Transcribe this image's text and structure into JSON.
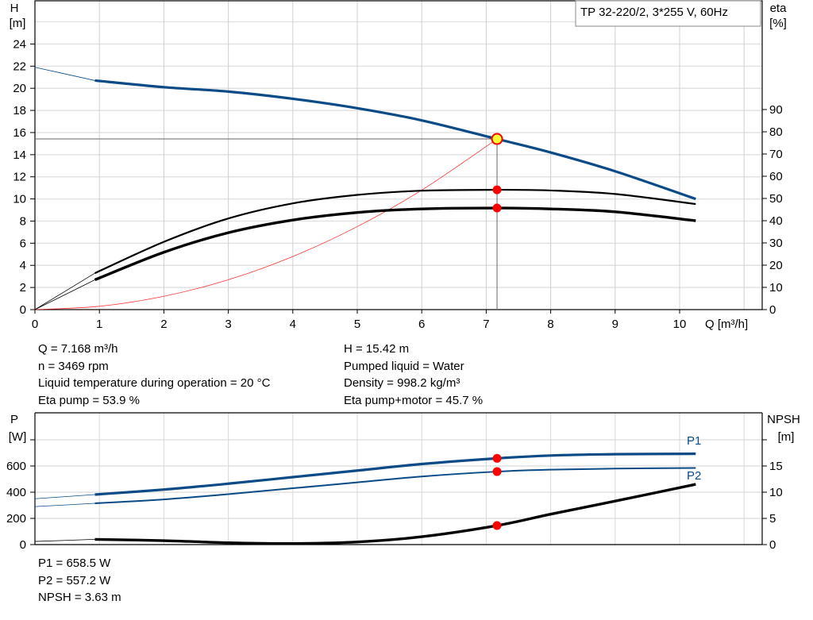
{
  "chart_data": [
    {
      "type": "line",
      "title": "TP 32-220/2, 3*255 V, 60Hz",
      "xlabel": "Q [m³/h]",
      "ylabel": [
        "H",
        "[m]"
      ],
      "y2label": [
        "eta",
        "[%]"
      ],
      "xlim": [
        0,
        11
      ],
      "ylim": [
        0,
        26
      ],
      "y2lim": [
        0,
        90
      ],
      "xticks": [
        0,
        1,
        2,
        3,
        4,
        5,
        6,
        7,
        8,
        9,
        10
      ],
      "yticks": [
        0,
        2,
        4,
        6,
        8,
        10,
        12,
        14,
        16,
        18,
        20,
        22,
        24
      ],
      "y2ticks": [
        0,
        10,
        20,
        30,
        40,
        50,
        60,
        70,
        80,
        90
      ],
      "grid": true,
      "x": [
        0,
        0.93,
        2,
        3,
        4,
        5,
        6,
        7.168,
        8,
        9,
        10.25
      ],
      "series": [
        {
          "id": "H",
          "axis": "left",
          "color": "#0a4a86",
          "values": [
            21.9,
            20.7,
            20.1,
            19.7,
            19.05,
            18.2,
            17.1,
            15.42,
            14.2,
            12.5,
            10.0
          ]
        },
        {
          "id": "eta-pump",
          "axis": "right",
          "color": "#000000",
          "values": [
            0,
            16.4,
            30.5,
            41,
            47.8,
            51.6,
            53.5,
            53.9,
            53.6,
            52,
            47.5
          ]
        },
        {
          "id": "eta-pump-motor",
          "axis": "right",
          "color": "#000000",
          "values": [
            0,
            13.4,
            25.8,
            34.6,
            40.3,
            43.7,
            45.3,
            45.7,
            45.3,
            44,
            40
          ]
        },
        {
          "id": "system-curve",
          "axis": "left",
          "color": "#ff3333",
          "x": [
            0,
            1,
            2,
            3,
            4,
            5,
            6,
            7.168
          ],
          "values": [
            0,
            0.3,
            1.2,
            2.7,
            4.8,
            7.5,
            10.8,
            15.42
          ]
        }
      ],
      "duty_point": {
        "Q": 7.168,
        "H": 15.42,
        "eta_pump": 53.9,
        "eta_total": 45.7
      }
    },
    {
      "type": "line",
      "ylabel": [
        "P",
        "[W]"
      ],
      "y2label": [
        "NPSH",
        "[m]"
      ],
      "xlim": [
        0,
        11
      ],
      "ylim": [
        0,
        800
      ],
      "y2lim": [
        0,
        20
      ],
      "yticks": [
        0,
        200,
        400,
        600
      ],
      "y2ticks": [
        0,
        5,
        10,
        15
      ],
      "grid": true,
      "x": [
        0,
        0.93,
        2,
        3,
        4,
        5,
        6,
        7.168,
        8,
        9,
        10.25
      ],
      "series": [
        {
          "name": "P1",
          "axis": "left",
          "color": "#0a4a86",
          "values": [
            350,
            382,
            420,
            465,
            515,
            565,
            615,
            658.5,
            680,
            690,
            693
          ]
        },
        {
          "name": "P2",
          "axis": "left",
          "color": "#0a4a86",
          "values": [
            290,
            315,
            345,
            385,
            430,
            475,
            520,
            557.2,
            572,
            580,
            585
          ]
        },
        {
          "id": "NPSH",
          "axis": "right",
          "color": "#000000",
          "values": [
            0.6,
            1.0,
            0.75,
            0.35,
            0.2,
            0.5,
            1.5,
            3.63,
            5.8,
            8.3,
            11.5
          ]
        }
      ]
    }
  ],
  "info_top_left": [
    "Q = 7.168 m³/h",
    "n = 3469 rpm",
    "Liquid temperature during operation = 20 °C",
    "Eta pump = 53.9 %"
  ],
  "info_top_right": [
    "H = 15.42 m",
    "Pumped liquid = Water",
    "Density = 998.2 kg/m³",
    "Eta pump+motor = 45.7 %"
  ],
  "info_bottom": [
    "P1 = 658.5 W",
    "P2 = 557.2 W",
    "NPSH = 3.63 m"
  ]
}
